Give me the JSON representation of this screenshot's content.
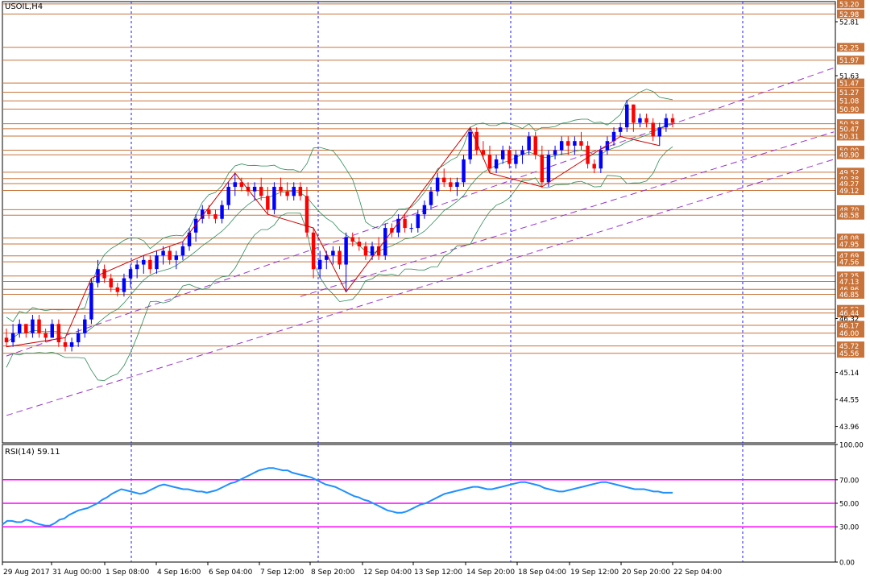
{
  "window": {
    "symbol_label": "USOIL,H4"
  },
  "rsi": {
    "label": "RSI(14) 59.11",
    "levels": [
      70,
      50,
      30
    ],
    "scale_ticks": [
      "100.00",
      "70.00",
      "50.00",
      "30.00",
      "0.00"
    ],
    "values": [
      32,
      35,
      35,
      34,
      34,
      36,
      35,
      33,
      32,
      31,
      31,
      33,
      36,
      37,
      40,
      42,
      44,
      45,
      46,
      48,
      50,
      53,
      55,
      58,
      60,
      62,
      61,
      60,
      59,
      58,
      59,
      61,
      63,
      65,
      66,
      65,
      64,
      63,
      62,
      62,
      61,
      60,
      60,
      59,
      60,
      61,
      63,
      65,
      67,
      68,
      70,
      72,
      74,
      76,
      78,
      79,
      80,
      80,
      79,
      78,
      78,
      76,
      75,
      74,
      73,
      72,
      70,
      68,
      66,
      65,
      64,
      62,
      60,
      58,
      56,
      55,
      53,
      52,
      50,
      48,
      46,
      44,
      43,
      42,
      42,
      43,
      45,
      47,
      49,
      50,
      52,
      54,
      56,
      58,
      59,
      60,
      61,
      62,
      63,
      64,
      64,
      63,
      62,
      62,
      63,
      64,
      65,
      66,
      67,
      68,
      68,
      67,
      66,
      65,
      63,
      62,
      61,
      60,
      60,
      61,
      62,
      63,
      64,
      65,
      66,
      67,
      68,
      68,
      67,
      66,
      65,
      64,
      63,
      62,
      62,
      62,
      61,
      60,
      60,
      59,
      59,
      59
    ]
  },
  "chart_data": {
    "type": "candlestick",
    "title": "USOIL,H4",
    "ylim": [
      43.6,
      53.25
    ],
    "y_ticks": [
      "53.20",
      "52.98",
      "52.81",
      "52.25",
      "51.97",
      "51.63",
      "51.47",
      "51.27",
      "51.08",
      "50.90",
      "50.58",
      "50.47",
      "50.31",
      "50.00",
      "49.90",
      "49.52",
      "49.38",
      "49.27",
      "49.12",
      "48.70",
      "48.58",
      "48.08",
      "47.95",
      "47.69",
      "47.56",
      "47.25",
      "47.13",
      "46.96",
      "46.85",
      "46.52",
      "46.44",
      "46.32",
      "46.17",
      "46.00",
      "45.72",
      "45.56",
      "45.14",
      "44.55",
      "43.96"
    ],
    "highlighted_levels": [
      "53.20",
      "52.98",
      "52.25",
      "51.97",
      "51.47",
      "51.27",
      "51.08",
      "50.90",
      "50.58",
      "50.47",
      "50.31",
      "50.00",
      "49.90",
      "49.52",
      "49.38",
      "49.27",
      "49.12",
      "48.70",
      "48.58",
      "48.08",
      "47.95",
      "47.69",
      "47.56",
      "47.25",
      "47.13",
      "46.96",
      "46.85",
      "46.52",
      "46.44",
      "46.17",
      "46.00",
      "45.72",
      "45.56"
    ],
    "x_labels": [
      "29 Aug 2017",
      "31 Aug 00:00",
      "1 Sep 08:00",
      "4 Sep 16:00",
      "6 Sep 04:00",
      "7 Sep 12:00",
      "8 Sep 20:00",
      "12 Sep 04:00",
      "13 Sep 12:00",
      "14 Sep 20:00",
      "18 Sep 04:00",
      "19 Sep 12:00",
      "20 Sep 20:00",
      "22 Sep 04:00"
    ],
    "candles": [
      [
        45.9,
        46.1,
        45.7,
        45.8
      ],
      [
        45.8,
        46.2,
        45.7,
        46.0
      ],
      [
        46.0,
        46.3,
        45.9,
        46.2
      ],
      [
        46.2,
        46.2,
        45.9,
        46.0
      ],
      [
        46.0,
        46.4,
        45.9,
        46.3
      ],
      [
        46.3,
        46.4,
        45.9,
        46.0
      ],
      [
        46.0,
        46.1,
        45.8,
        45.9
      ],
      [
        45.9,
        46.3,
        45.9,
        46.2
      ],
      [
        46.2,
        46.3,
        45.7,
        45.8
      ],
      [
        45.8,
        45.9,
        45.6,
        45.7
      ],
      [
        45.7,
        45.9,
        45.6,
        45.8
      ],
      [
        45.8,
        46.1,
        45.7,
        46.0
      ],
      [
        46.0,
        46.4,
        45.9,
        46.3
      ],
      [
        46.3,
        47.2,
        46.2,
        47.1
      ],
      [
        47.1,
        47.6,
        47.0,
        47.4
      ],
      [
        47.4,
        47.5,
        47.1,
        47.2
      ],
      [
        47.2,
        47.3,
        46.9,
        47.0
      ],
      [
        47.0,
        47.1,
        46.8,
        46.9
      ],
      [
        46.9,
        47.3,
        46.8,
        47.2
      ],
      [
        47.2,
        47.5,
        47.0,
        47.4
      ],
      [
        47.4,
        47.6,
        47.2,
        47.5
      ],
      [
        47.5,
        47.7,
        47.3,
        47.6
      ],
      [
        47.6,
        47.7,
        47.3,
        47.4
      ],
      [
        47.4,
        47.8,
        47.3,
        47.7
      ],
      [
        47.7,
        47.9,
        47.5,
        47.8
      ],
      [
        47.8,
        47.9,
        47.5,
        47.6
      ],
      [
        47.6,
        47.8,
        47.4,
        47.7
      ],
      [
        47.7,
        48.0,
        47.6,
        47.9
      ],
      [
        47.9,
        48.3,
        47.8,
        48.2
      ],
      [
        48.2,
        48.6,
        48.0,
        48.5
      ],
      [
        48.5,
        48.8,
        48.4,
        48.7
      ],
      [
        48.7,
        48.8,
        48.5,
        48.6
      ],
      [
        48.6,
        48.7,
        48.4,
        48.5
      ],
      [
        48.5,
        48.9,
        48.4,
        48.8
      ],
      [
        48.8,
        49.3,
        48.7,
        49.2
      ],
      [
        49.2,
        49.5,
        49.0,
        49.3
      ],
      [
        49.3,
        49.4,
        49.1,
        49.2
      ],
      [
        49.2,
        49.3,
        49.0,
        49.1
      ],
      [
        49.1,
        49.3,
        48.9,
        49.2
      ],
      [
        49.2,
        49.4,
        48.9,
        49.0
      ],
      [
        49.0,
        49.2,
        48.6,
        48.7
      ],
      [
        48.7,
        49.3,
        48.6,
        49.2
      ],
      [
        49.2,
        49.4,
        49.0,
        49.1
      ],
      [
        49.1,
        49.3,
        48.9,
        49.0
      ],
      [
        49.0,
        49.3,
        48.9,
        49.2
      ],
      [
        49.2,
        49.3,
        48.9,
        49.0
      ],
      [
        49.0,
        49.2,
        48.1,
        48.2
      ],
      [
        48.2,
        48.3,
        47.2,
        47.4
      ],
      [
        47.4,
        47.8,
        47.2,
        47.6
      ],
      [
        47.6,
        47.8,
        47.4,
        47.7
      ],
      [
        47.7,
        47.9,
        47.5,
        47.8
      ],
      [
        47.8,
        47.9,
        47.4,
        47.5
      ],
      [
        47.5,
        48.2,
        46.9,
        48.1
      ],
      [
        48.1,
        48.2,
        47.9,
        48.0
      ],
      [
        48.0,
        48.1,
        47.8,
        47.9
      ],
      [
        47.9,
        48.0,
        47.6,
        47.7
      ],
      [
        47.7,
        48.0,
        47.6,
        47.9
      ],
      [
        47.9,
        48.1,
        47.6,
        47.7
      ],
      [
        47.7,
        48.4,
        47.6,
        48.3
      ],
      [
        48.3,
        48.4,
        48.1,
        48.2
      ],
      [
        48.2,
        48.6,
        48.1,
        48.5
      ],
      [
        48.5,
        48.6,
        48.2,
        48.3
      ],
      [
        48.3,
        48.4,
        48.2,
        48.3
      ],
      [
        48.3,
        48.7,
        48.2,
        48.6
      ],
      [
        48.6,
        48.9,
        48.5,
        48.8
      ],
      [
        48.8,
        49.2,
        48.7,
        49.1
      ],
      [
        49.1,
        49.5,
        49.0,
        49.4
      ],
      [
        49.4,
        49.6,
        49.2,
        49.3
      ],
      [
        49.3,
        49.4,
        49.1,
        49.2
      ],
      [
        49.2,
        49.4,
        49.0,
        49.3
      ],
      [
        49.3,
        49.9,
        49.2,
        49.8
      ],
      [
        49.8,
        50.5,
        49.7,
        50.4
      ],
      [
        50.4,
        50.5,
        49.9,
        50.0
      ],
      [
        50.0,
        50.2,
        49.8,
        49.9
      ],
      [
        49.9,
        50.1,
        49.5,
        49.6
      ],
      [
        49.6,
        49.9,
        49.5,
        49.8
      ],
      [
        49.8,
        50.1,
        49.7,
        50.0
      ],
      [
        50.0,
        50.1,
        49.6,
        49.7
      ],
      [
        49.7,
        50.0,
        49.6,
        49.9
      ],
      [
        49.9,
        50.1,
        49.7,
        50.0
      ],
      [
        50.0,
        50.4,
        49.9,
        50.3
      ],
      [
        50.3,
        50.4,
        49.8,
        49.9
      ],
      [
        49.9,
        50.1,
        49.2,
        49.3
      ],
      [
        49.3,
        50.0,
        49.2,
        49.9
      ],
      [
        49.9,
        50.1,
        49.8,
        50.0
      ],
      [
        50.0,
        50.3,
        49.9,
        50.2
      ],
      [
        50.2,
        50.3,
        49.9,
        50.1
      ],
      [
        50.1,
        50.3,
        49.9,
        50.2
      ],
      [
        50.2,
        50.4,
        50.0,
        50.1
      ],
      [
        50.1,
        50.2,
        49.6,
        49.7
      ],
      [
        49.7,
        49.8,
        49.5,
        49.6
      ],
      [
        49.6,
        50.1,
        49.5,
        50.0
      ],
      [
        50.0,
        50.3,
        49.9,
        50.2
      ],
      [
        50.2,
        50.5,
        50.1,
        50.4
      ],
      [
        50.4,
        50.6,
        50.3,
        50.5
      ],
      [
        50.5,
        51.1,
        50.4,
        51.0
      ],
      [
        51.0,
        51.0,
        50.4,
        50.6
      ],
      [
        50.6,
        50.8,
        50.5,
        50.7
      ],
      [
        50.7,
        50.8,
        50.5,
        50.6
      ],
      [
        50.6,
        50.7,
        50.2,
        50.3
      ],
      [
        50.3,
        50.6,
        50.1,
        50.5
      ],
      [
        50.5,
        50.8,
        50.4,
        50.7
      ],
      [
        50.7,
        50.8,
        50.5,
        50.6
      ]
    ],
    "channel_lines": [
      [
        0,
        45.5,
        102,
        51.8
      ],
      [
        45,
        46.8,
        102,
        50.4
      ],
      [
        0,
        44.2,
        102,
        49.8
      ]
    ],
    "grid": "vertical-dashed",
    "rsi_panel": true
  }
}
